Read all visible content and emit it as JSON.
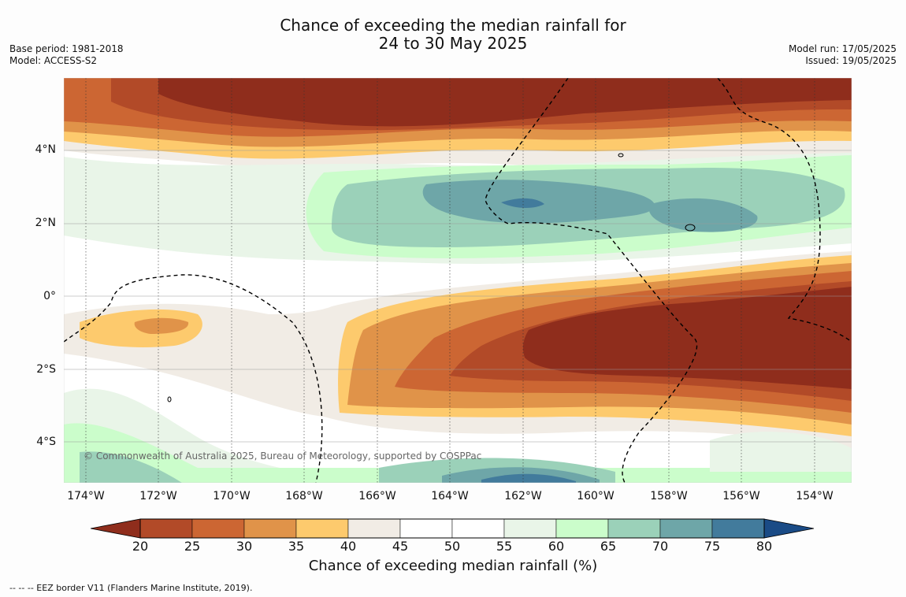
{
  "title": {
    "line1": "Chance of exceeding the median rainfall for",
    "line2": "24 to 30 May 2025"
  },
  "meta_left": {
    "base_period": "Base period: 1981-2018",
    "model": "Model: ACCESS-S2"
  },
  "meta_right": {
    "model_run": "Model run: 17/05/2025",
    "issued": "Issued: 19/05/2025"
  },
  "copyright": "© Commonwealth of Australia 2025, Bureau of Meteorology, supported by COSPPac",
  "lat_labels": [
    "4°N",
    "2°N",
    "0°",
    "2°S",
    "4°S"
  ],
  "lon_labels": [
    "174°W",
    "172°W",
    "170°W",
    "168°W",
    "166°W",
    "164°W",
    "162°W",
    "160°W",
    "158°W",
    "156°W",
    "154°W"
  ],
  "colorbar": {
    "ticks": [
      "20",
      "25",
      "30",
      "35",
      "40",
      "45",
      "50",
      "55",
      "60",
      "65",
      "70",
      "75",
      "80"
    ],
    "colors": [
      "#8f2d1c",
      "#b24a28",
      "#cc6633",
      "#e09349",
      "#fdca6d",
      "#f1ece5",
      "#ffffff",
      "#ffffff",
      "#e9f5e8",
      "#cbfdcb",
      "#9bd1b9",
      "#6ea6a8",
      "#427b9c",
      "#1a4b86"
    ],
    "label": "Chance of exceeding median rainfall (%)"
  },
  "footnote": "--  --  -- EEZ border V11 (Flanders Marine Institute, 2019)."
}
